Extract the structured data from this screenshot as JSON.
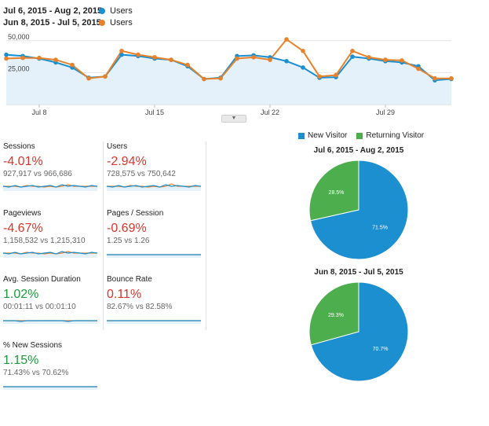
{
  "legend": {
    "current_range": "Jul 6, 2015 - Aug 2, 2015:",
    "current_series": "Users",
    "previous_range": "Jun 8, 2015 - Jul 5, 2015:",
    "previous_series": "Users"
  },
  "colors": {
    "current": "#1b8fcf",
    "previous": "#e8822a",
    "returning": "#4cae4c",
    "area": "#e5f1fa"
  },
  "chart_data": {
    "type": "line",
    "x": [
      "Jul 6",
      "Jul 7",
      "Jul 8",
      "Jul 9",
      "Jul 10",
      "Jul 11",
      "Jul 12",
      "Jul 13",
      "Jul 14",
      "Jul 15",
      "Jul 16",
      "Jul 17",
      "Jul 18",
      "Jul 19",
      "Jul 20",
      "Jul 21",
      "Jul 22",
      "Jul 23",
      "Jul 24",
      "Jul 25",
      "Jul 26",
      "Jul 27",
      "Jul 28",
      "Jul 29",
      "Jul 30",
      "Jul 31",
      "Aug 1",
      "Aug 2"
    ],
    "series": [
      {
        "name": "Users",
        "values": [
          39000,
          38000,
          36000,
          33000,
          29000,
          21000,
          22000,
          39000,
          38000,
          36000,
          35000,
          30000,
          20000,
          21000,
          38000,
          38500,
          37000,
          34000,
          29000,
          21000,
          21500,
          37500,
          36000,
          34000,
          33000,
          30000,
          19000,
          20000
        ]
      },
      {
        "name": "Users",
        "values": [
          36000,
          36500,
          36500,
          35000,
          31000,
          20500,
          22000,
          42000,
          39000,
          37000,
          35000,
          31000,
          20000,
          20500,
          36000,
          37000,
          35000,
          51000,
          42000,
          22000,
          23000,
          42000,
          37000,
          35000,
          34500,
          28000,
          20500,
          20500
        ]
      }
    ],
    "y_ticks": [
      "50,000",
      "25,000"
    ],
    "ylim": [
      0,
      56000
    ],
    "x_ticks": [
      "Jul 8",
      "Jul 15",
      "Jul 22",
      "Jul 29"
    ]
  },
  "metrics": [
    {
      "title": "Sessions",
      "change": "-4.01%",
      "compare": "927,917 vs 966,686",
      "trend": "neg",
      "spark_a": [
        6,
        7,
        5,
        7,
        6,
        5,
        7,
        6,
        5,
        7,
        4,
        6,
        5,
        6,
        7,
        5,
        6
      ],
      "spark_b": [
        6,
        6,
        6,
        7,
        5,
        6,
        6,
        7,
        6,
        7,
        6,
        4,
        6,
        6,
        6,
        6,
        6
      ]
    },
    {
      "title": "Users",
      "change": "-2.94%",
      "compare": "728,575 vs 750,642",
      "trend": "neg",
      "spark_a": [
        6,
        7,
        5,
        7,
        6,
        5,
        7,
        6,
        5,
        7,
        4,
        6,
        5,
        6,
        7,
        5,
        6
      ],
      "spark_b": [
        6,
        6,
        6,
        7,
        5,
        6,
        6,
        7,
        6,
        7,
        6,
        3,
        6,
        6,
        6,
        6,
        6
      ]
    },
    {
      "title": "Pageviews",
      "change": "-4.67%",
      "compare": "1,158,532 vs 1,215,310",
      "trend": "neg",
      "spark_a": [
        6,
        7,
        5,
        7,
        6,
        5,
        7,
        6,
        5,
        7,
        4,
        6,
        5,
        6,
        7,
        5,
        6
      ],
      "spark_b": [
        6,
        6,
        6,
        7,
        5,
        6,
        6,
        7,
        6,
        7,
        6,
        4,
        6,
        6,
        6,
        6,
        6
      ]
    },
    {
      "title": "Pages / Session",
      "change": "-0.69%",
      "compare": "1.25 vs 1.26",
      "trend": "neg",
      "spark_a": [
        8,
        8,
        8,
        8,
        8,
        8,
        8,
        8,
        8,
        8,
        8,
        8,
        8,
        8,
        8,
        8,
        8
      ],
      "spark_b": [
        8,
        8,
        8,
        8,
        8,
        8,
        8,
        8,
        8,
        8,
        8,
        8,
        8,
        8,
        8,
        8,
        8
      ]
    },
    {
      "title": "Avg. Session Duration",
      "change": "1.02%",
      "compare": "00:01:11 vs 00:01:10",
      "trend": "pos",
      "spark_a": [
        8,
        8,
        8,
        9,
        8,
        8,
        8,
        8,
        8,
        8,
        8,
        9,
        8,
        8,
        8,
        8,
        8
      ],
      "spark_b": [
        8,
        8,
        8,
        8,
        8,
        8,
        8,
        8,
        8,
        8,
        8,
        8,
        8,
        8,
        8,
        8,
        8
      ]
    },
    {
      "title": "Bounce Rate",
      "change": "0.11%",
      "compare": "82.67% vs 82.58%",
      "trend": "neg",
      "spark_a": [
        8,
        8,
        8,
        8,
        8,
        8,
        8,
        8,
        8,
        8,
        8,
        8,
        8,
        8,
        8,
        8,
        8
      ],
      "spark_b": [
        8,
        8,
        8,
        8,
        8,
        8,
        8,
        8,
        8,
        8,
        8,
        8,
        8,
        8,
        8,
        8,
        8
      ]
    },
    {
      "title": "% New Sessions",
      "change": "1.15%",
      "compare": "71.43% vs 70.62%",
      "trend": "pos",
      "spark_a": [
        8,
        8,
        8,
        8,
        8,
        8,
        8,
        8,
        8,
        8,
        8,
        8,
        8,
        8,
        8,
        8,
        8
      ],
      "spark_b": [
        8,
        8,
        8,
        8,
        8,
        8,
        8,
        8,
        8,
        8,
        8,
        8,
        8,
        8,
        8,
        8,
        8
      ]
    }
  ],
  "pie_legend": {
    "new": "New Visitor",
    "returning": "Returning Visitor"
  },
  "pies": [
    {
      "title": "Jul 6, 2015 - Aug 2, 2015",
      "new_pct": 71.5,
      "returning_pct": 28.5,
      "new_label": "71.5%",
      "returning_label": "28.5%"
    },
    {
      "title": "Jun 8, 2015 - Jul 5, 2015",
      "new_pct": 70.7,
      "returning_pct": 29.3,
      "new_label": "70.7%",
      "returning_label": "29.3%"
    }
  ]
}
